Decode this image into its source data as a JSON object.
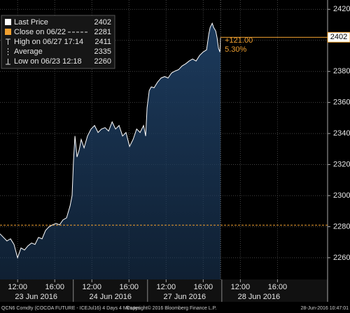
{
  "chart_data": {
    "type": "area",
    "x": [
      0,
      0.38,
      0.75,
      1.13,
      1.51,
      1.89,
      2.26,
      2.64,
      3.02,
      3.4,
      3.77,
      4.15,
      4.53,
      4.91,
      5.28,
      5.66,
      6.04,
      6.42,
      6.79,
      7.17,
      7.55,
      7.77,
      7.92,
      8.08,
      8.3,
      8.53,
      8.75,
      9.06,
      9.43,
      9.81,
      10.19,
      10.57,
      10.94,
      11.32,
      11.7,
      12.08,
      12.45,
      12.83,
      13.21,
      13.58,
      13.96,
      14.34,
      14.72,
      15.09,
      15.47,
      15.7,
      15.85,
      16.08,
      16.3,
      16.6,
      16.98,
      17.36,
      17.74,
      18.11,
      18.49,
      18.87,
      19.25,
      19.62,
      20,
      20.38,
      20.75,
      21.13,
      21.51,
      21.89,
      22.26,
      22.49,
      22.64,
      22.87,
      23.02,
      23.25,
      23.4,
      23.55,
      23.7,
      23.77
    ],
    "series": [
      {
        "name": "Last Price",
        "color": "#ffffff",
        "fill": "#1c3a5c",
        "values": [
          2275.4,
          2273.1,
          2270.8,
          2272.2,
          2268.6,
          2260,
          2266.3,
          2265,
          2267.7,
          2269.5,
          2268.6,
          2273.1,
          2272.2,
          2277.6,
          2279.9,
          2281.2,
          2282.1,
          2281.2,
          2284.4,
          2285.7,
          2293.4,
          2300.1,
          2322.7,
          2338.4,
          2324.9,
          2329.4,
          2336.2,
          2330.8,
          2338.4,
          2342.9,
          2345.2,
          2340.7,
          2342.9,
          2343.8,
          2341.6,
          2347.5,
          2342.9,
          2345.2,
          2338.4,
          2340.7,
          2331.7,
          2336.2,
          2342.9,
          2340.7,
          2345.2,
          2338.4,
          2356.5,
          2367.7,
          2370,
          2369.5,
          2373.1,
          2375.8,
          2376.7,
          2375.8,
          2379,
          2380.3,
          2381.2,
          2383.5,
          2384.9,
          2386.7,
          2388,
          2386.7,
          2390.3,
          2392.5,
          2393.9,
          2403.8,
          2408.3,
          2411,
          2408.3,
          2406,
          2401.5,
          2394.8,
          2392.5,
          2402
        ]
      }
    ],
    "xlim": [
      0,
      35.3
    ],
    "xticks": [
      {
        "value": 1.9,
        "label": "12:00"
      },
      {
        "value": 5.9,
        "label": "16:00"
      },
      {
        "value": 9.9,
        "label": "12:00"
      },
      {
        "value": 13.9,
        "label": "16:00"
      },
      {
        "value": 17.9,
        "label": "12:00"
      },
      {
        "value": 21.9,
        "label": "16:00"
      },
      {
        "value": 25.9,
        "label": "12:00"
      },
      {
        "value": 29.9,
        "label": "16:00"
      }
    ],
    "day_labels": [
      {
        "value": 3.9,
        "label": "23 Jun 2016"
      },
      {
        "value": 11.9,
        "label": "24 Jun 2016"
      },
      {
        "value": 19.9,
        "label": "27 Jun 2016"
      },
      {
        "value": 27.9,
        "label": "28 Jun 2016"
      }
    ],
    "ylim": [
      2246,
      2426
    ],
    "yticks": [
      2260,
      2280,
      2300,
      2320,
      2340,
      2360,
      2380,
      2400,
      2420
    ],
    "grid": true,
    "legend": [
      {
        "label": "Last Price",
        "value": 2402
      },
      {
        "label": "Close on 06/22",
        "value": 2281
      },
      {
        "label": "High on 06/27 17:14",
        "value": 2411
      },
      {
        "label": "Average",
        "value": 2335
      },
      {
        "label": "Low on 06/23 12:18",
        "value": 2260
      }
    ],
    "change_labels": [
      "+121.00",
      "5.30%"
    ],
    "accent_color": "#f0a030",
    "footer": [
      "QCN6 Comdty (COCOA FUTURE - ICEJul16) 4 Days 4 Minutes",
      "Copyright© 2016 Bloomberg Finance L.P.",
      "28-Jun-2016 10:47:01"
    ]
  }
}
